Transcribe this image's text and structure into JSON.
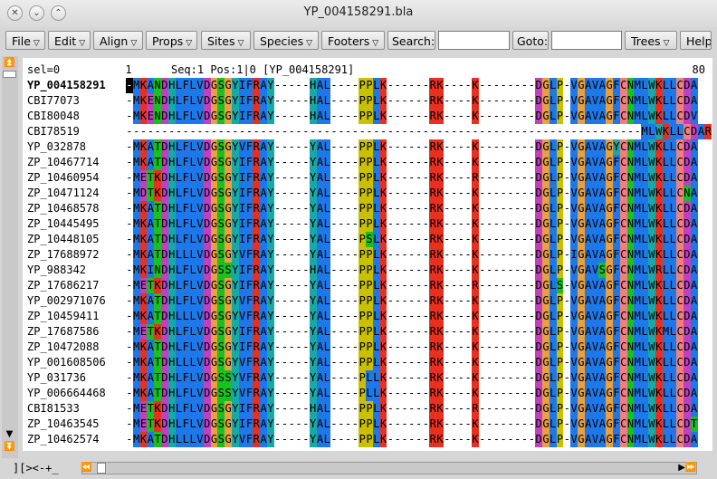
{
  "window": {
    "title": "YP_004158291.bla",
    "buttons": [
      "✕",
      "⌄",
      "⌃"
    ]
  },
  "toolbar": {
    "menus": [
      "File",
      "Edit",
      "Align",
      "Props",
      "Sites",
      "Species",
      "Footers"
    ],
    "search_label": "Search:",
    "search_value": "",
    "goto_label": "Goto:",
    "goto_value": "",
    "trees_label": "Trees",
    "help_label": "Help"
  },
  "header": {
    "sel": "sel=0",
    "start": "1",
    "status": "Seq:1 Pos:1|0 [YP_004158291]",
    "end": "80"
  },
  "rows": [
    {
      "name": "YP_004158291",
      "seq": "-MKANDHLFLVDGSGYIFRAY-----HAL----PPLK------RK----K--------DGLP-VGAVAGFCNMLWKLLCDA"
    },
    {
      "name": "CBI77073",
      "seq": "-MKENDHLFLVDGSGYIFRAY-----HAL----PPLK------RK----K--------DGLP-VGAVAGFCNMLWKLLCDA"
    },
    {
      "name": "CBI80048",
      "seq": "-MKENDHLFLVDGSGYIFRAY-----HAL----PPLK------RK----K--------DGLP-VGAVAGFCNMLWKLLCDV"
    },
    {
      "name": "CBI78519",
      "seq": "-------------------------------------------------------------------------MLWKLLCDAR"
    },
    {
      "name": "YP_032878",
      "seq": "-MKATDHLFLVDGSGYVFRAY-----YAL----PPLK------RK----K--------DGLP-VGAVAGYCNMLWKLLCDA"
    },
    {
      "name": "ZP_10467714",
      "seq": "-MKATDHLFLVDGSGYIFRAY-----YAL----PPLK------RK----K--------DGLP-VGAVAGFCNMLWKLLCDA"
    },
    {
      "name": "ZP_10460954",
      "seq": "-METKDHLFLVDGSGYIFRAY-----YAL----PPLK------RK----R--------DGLP-VGAVAGFCNMLWKLLCDA"
    },
    {
      "name": "ZP_10471124",
      "seq": "-MDTKDHLFLVDGSGYIFRAY-----YAL----PPLK------RK----K--------DGLP-VGAVAGFCNMLWKLLCNA"
    },
    {
      "name": "ZP_10468578",
      "seq": "-MKATDHLFLVDGSGYIFRAY-----YAL----PPLK------RK----K--------DGLP-VGAVAGFCNMLWKLLCDA"
    },
    {
      "name": "ZP_10445495",
      "seq": "-MKATDHLFLVDGSGYIFRAY-----YAL----PPLK------RK----K--------DGLP-VGAVAGFCNMLWKLLCDA"
    },
    {
      "name": "ZP_10448105",
      "seq": "-MKATDHLFLVDGSGYIFRAY-----YAL----PSLK------RK----K--------DGLP-VGAVAGFCNMLWKLLCDA"
    },
    {
      "name": "ZP_17688972",
      "seq": "-MKATDHLLLVDGSGYVFRAY-----YAL----PPLK------RK----K--------DGLP-IGAVAGFCNMLWKLLCDA"
    },
    {
      "name": "YP_988342",
      "seq": "-MKINDHLFLVDGSSYIFRAY-----HAL----PPLK------RK----K--------DGLP-VGAVSGFCNMLWRLLCDA"
    },
    {
      "name": "ZP_17686217",
      "seq": "-METKDHLFLVDGSGYIFRAY-----YAL----PPLK------RK----R--------DGLS-VGAVAGFCNMLWKLLCDA"
    },
    {
      "name": "YP_002971076",
      "seq": "-MKATDHLFLVDGSGYVFRAY-----YAL----PPLK------RK----K--------DGLP-VGAVAGFCNMLWKLLCDA"
    },
    {
      "name": "ZP_10459411",
      "seq": "-MKATDHLLLVDGSGYVFRAY-----YAL----PPLK------RK----K--------DGLP-VGAVAGFCNMLWKLLCDA"
    },
    {
      "name": "ZP_17687586",
      "seq": "-METKDHLFLVDGSGYIFRAY-----YAL----PPLK------RK----K--------DGLP-VGAVAGFCNMLWKMLCDA"
    },
    {
      "name": "ZP_10472088",
      "seq": "-MKATDHLFLVDGSGYIFRAY-----YAL----PPLK------RK----K--------DGLP-VGAVAGFCNMLWKLLCDA"
    },
    {
      "name": "YP_001608506",
      "seq": "-MKATDHLLLVDGSGYVFRAY-----YAL----PPLK------RK----K--------DGLP-VGAVAGFCNMLWKLLCDA"
    },
    {
      "name": "YP_031736",
      "seq": "-MKATDHLFLVDGSSYVFRAY-----YAL----PLLK------RK----K--------DGLP-VGAVAGFCNMLWKLLCDA"
    },
    {
      "name": "YP_006664468",
      "seq": "-MKATDHLFLVDGSSYVFRAY-----YAL----PLLK------RK----K--------DGLP-VGAVAGFCNMLWKLLCDA"
    },
    {
      "name": "CBI81533",
      "seq": "-METKDHLFLVDGSGYIFRAY-----HAL----PPLK------RK----R--------DGLP-VGAVAGFCNMLWKLLCDA"
    },
    {
      "name": "ZP_10463545",
      "seq": "-METKDHLFLVDGSGYIFRAY-----YAL----PPLK------RK----K--------DGLP-VGAVAGFCNMLWKLLCDT"
    },
    {
      "name": "ZP_10462574",
      "seq": "-MKATDHLLLVDGSGYVFRAY-----YAL----PPLK------RK----K--------DGLP-VGAVAGFCNMLWKLLCDA"
    }
  ],
  "colors": {
    "hydrophobic": "#1e78e8",
    "positive": "#e83020",
    "negative": "#c040c0",
    "polar": "#18c020",
    "glycine": "#e8a040",
    "proline": "#c8c000",
    "aromatic": "#18a8a8",
    "cysteine": "#f08080"
  },
  "footer": {
    "label": "][><-+_"
  }
}
